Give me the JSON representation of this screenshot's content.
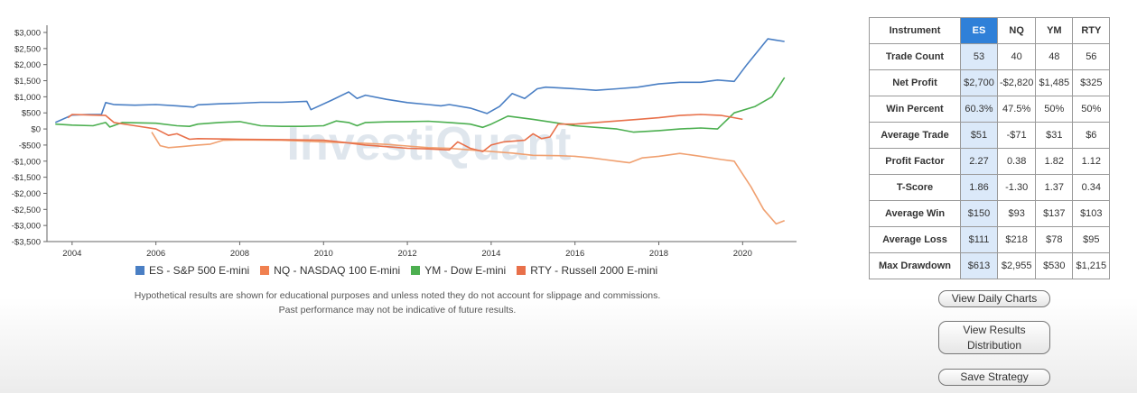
{
  "chart_data": {
    "type": "line",
    "title": "",
    "xlabel": "",
    "ylabel": "",
    "xlim": [
      2003.4,
      2021.2
    ],
    "ylim": [
      -3500,
      3000
    ],
    "y_ticks": [
      3000,
      2500,
      2000,
      1500,
      1000,
      500,
      0,
      -500,
      -1000,
      -1500,
      -2000,
      -2500,
      -3000,
      -3500
    ],
    "y_tick_labels": [
      "$3,000",
      "$2,500",
      "$2,000",
      "$1,500",
      "$1,000",
      "$500",
      "$0",
      "-$500",
      "-$1,000",
      "-$1,500",
      "-$2,000",
      "-$2,500",
      "-$3,000",
      "-$3,500"
    ],
    "x_ticks": [
      2004,
      2006,
      2008,
      2010,
      2012,
      2014,
      2016,
      2018,
      2020
    ],
    "x_tick_labels": [
      "2004",
      "2006",
      "2008",
      "2010",
      "2012",
      "2014",
      "2016",
      "2018",
      "2020"
    ],
    "watermark": "InvestiQuant",
    "series": [
      {
        "name": "ES - S&P 500 E-mini",
        "color": "#4a7fc4",
        "points": [
          [
            2003.6,
            200
          ],
          [
            2004.0,
            430
          ],
          [
            2004.4,
            450
          ],
          [
            2004.7,
            450
          ],
          [
            2004.8,
            820
          ],
          [
            2005.0,
            760
          ],
          [
            2005.5,
            740
          ],
          [
            2006.0,
            760
          ],
          [
            2006.5,
            720
          ],
          [
            2006.9,
            680
          ],
          [
            2007.0,
            750
          ],
          [
            2007.5,
            780
          ],
          [
            2008.0,
            800
          ],
          [
            2008.5,
            830
          ],
          [
            2009.0,
            830
          ],
          [
            2009.6,
            860
          ],
          [
            2009.7,
            600
          ],
          [
            2010.2,
            900
          ],
          [
            2010.6,
            1150
          ],
          [
            2010.8,
            950
          ],
          [
            2011.0,
            1050
          ],
          [
            2011.5,
            920
          ],
          [
            2012.0,
            820
          ],
          [
            2012.5,
            760
          ],
          [
            2012.8,
            720
          ],
          [
            2013.0,
            760
          ],
          [
            2013.5,
            650
          ],
          [
            2013.9,
            480
          ],
          [
            2014.2,
            700
          ],
          [
            2014.5,
            1100
          ],
          [
            2014.8,
            950
          ],
          [
            2015.1,
            1250
          ],
          [
            2015.3,
            1300
          ],
          [
            2015.6,
            1280
          ],
          [
            2016.0,
            1250
          ],
          [
            2016.5,
            1200
          ],
          [
            2017.0,
            1250
          ],
          [
            2017.5,
            1300
          ],
          [
            2018.0,
            1400
          ],
          [
            2018.5,
            1450
          ],
          [
            2019.0,
            1450
          ],
          [
            2019.4,
            1520
          ],
          [
            2019.8,
            1480
          ],
          [
            2020.1,
            2000
          ],
          [
            2020.6,
            2800
          ],
          [
            2020.8,
            2760
          ],
          [
            2021.0,
            2720
          ]
        ]
      },
      {
        "name": "NQ - NASDAQ 100 E-mini",
        "color": "#f0a070",
        "points": [
          [
            2005.9,
            -100
          ],
          [
            2006.1,
            -520
          ],
          [
            2006.3,
            -580
          ],
          [
            2006.6,
            -550
          ],
          [
            2007.0,
            -500
          ],
          [
            2007.3,
            -470
          ],
          [
            2007.6,
            -350
          ],
          [
            2008.0,
            -340
          ],
          [
            2009.0,
            -350
          ],
          [
            2010.0,
            -400
          ],
          [
            2011.0,
            -450
          ],
          [
            2011.5,
            -480
          ],
          [
            2012.0,
            -530
          ],
          [
            2012.5,
            -580
          ],
          [
            2013.0,
            -600
          ],
          [
            2013.5,
            -650
          ],
          [
            2014.0,
            -700
          ],
          [
            2014.5,
            -750
          ],
          [
            2015.0,
            -820
          ],
          [
            2015.6,
            -830
          ],
          [
            2016.0,
            -850
          ],
          [
            2016.4,
            -900
          ],
          [
            2016.7,
            -950
          ],
          [
            2017.0,
            -1000
          ],
          [
            2017.3,
            -1050
          ],
          [
            2017.6,
            -900
          ],
          [
            2018.0,
            -850
          ],
          [
            2018.5,
            -760
          ],
          [
            2019.0,
            -850
          ],
          [
            2019.5,
            -950
          ],
          [
            2019.8,
            -1000
          ],
          [
            2020.2,
            -1800
          ],
          [
            2020.5,
            -2500
          ],
          [
            2020.8,
            -2950
          ],
          [
            2021.0,
            -2850
          ]
        ]
      },
      {
        "name": "YM - Dow E-mini",
        "color": "#4caf50",
        "points": [
          [
            2003.6,
            150
          ],
          [
            2004.0,
            120
          ],
          [
            2004.5,
            100
          ],
          [
            2004.8,
            200
          ],
          [
            2004.9,
            60
          ],
          [
            2005.2,
            200
          ],
          [
            2006.0,
            180
          ],
          [
            2006.5,
            100
          ],
          [
            2006.8,
            80
          ],
          [
            2007.0,
            150
          ],
          [
            2007.5,
            200
          ],
          [
            2008.0,
            230
          ],
          [
            2008.5,
            100
          ],
          [
            2009.0,
            80
          ],
          [
            2009.5,
            80
          ],
          [
            2010.0,
            100
          ],
          [
            2010.3,
            250
          ],
          [
            2010.6,
            200
          ],
          [
            2010.8,
            100
          ],
          [
            2011.0,
            200
          ],
          [
            2011.5,
            220
          ],
          [
            2012.0,
            230
          ],
          [
            2012.5,
            240
          ],
          [
            2013.0,
            200
          ],
          [
            2013.5,
            150
          ],
          [
            2013.8,
            50
          ],
          [
            2014.0,
            150
          ],
          [
            2014.4,
            400
          ],
          [
            2015.0,
            300
          ],
          [
            2015.5,
            200
          ],
          [
            2016.0,
            100
          ],
          [
            2016.5,
            50
          ],
          [
            2017.0,
            0
          ],
          [
            2017.4,
            -100
          ],
          [
            2018.0,
            -50
          ],
          [
            2018.5,
            0
          ],
          [
            2019.0,
            30
          ],
          [
            2019.4,
            0
          ],
          [
            2019.8,
            500
          ],
          [
            2020.3,
            700
          ],
          [
            2020.7,
            1000
          ],
          [
            2021.0,
            1600
          ]
        ]
      },
      {
        "name": "RTY - Russell 2000 E-mini",
        "color": "#e8704a",
        "points": [
          [
            2003.9,
            350
          ],
          [
            2004.0,
            450
          ],
          [
            2004.5,
            430
          ],
          [
            2004.8,
            420
          ],
          [
            2005.0,
            200
          ],
          [
            2005.5,
            100
          ],
          [
            2006.0,
            0
          ],
          [
            2006.3,
            -200
          ],
          [
            2006.5,
            -150
          ],
          [
            2006.8,
            -320
          ],
          [
            2007.0,
            -300
          ],
          [
            2008.0,
            -320
          ],
          [
            2009.0,
            -330
          ],
          [
            2010.0,
            -350
          ],
          [
            2010.5,
            -420
          ],
          [
            2011.0,
            -500
          ],
          [
            2011.5,
            -550
          ],
          [
            2012.0,
            -600
          ],
          [
            2012.5,
            -620
          ],
          [
            2013.0,
            -650
          ],
          [
            2013.2,
            -400
          ],
          [
            2013.5,
            -600
          ],
          [
            2013.8,
            -700
          ],
          [
            2014.0,
            -500
          ],
          [
            2014.3,
            -400
          ],
          [
            2014.8,
            -350
          ],
          [
            2015.0,
            -150
          ],
          [
            2015.2,
            -300
          ],
          [
            2015.4,
            -250
          ],
          [
            2015.6,
            150
          ],
          [
            2016.0,
            150
          ],
          [
            2016.5,
            200
          ],
          [
            2017.0,
            250
          ],
          [
            2017.5,
            300
          ],
          [
            2018.0,
            350
          ],
          [
            2018.5,
            420
          ],
          [
            2019.0,
            450
          ],
          [
            2019.5,
            420
          ],
          [
            2019.8,
            350
          ],
          [
            2020.0,
            300
          ]
        ]
      }
    ],
    "legend_position": "bottom"
  },
  "disclaimer": {
    "line1": "Hypothetical results are shown for educational purposes and unless noted they do not account for slippage and commissions.",
    "line2": "Past performance may not be indicative of future results."
  },
  "table": {
    "headers": [
      "Instrument",
      "ES",
      "NQ",
      "YM",
      "RTY"
    ],
    "rows": [
      {
        "label": "Trade Count",
        "values": [
          "53",
          "40",
          "48",
          "56"
        ]
      },
      {
        "label": "Net Profit",
        "values": [
          "$2,700",
          "-$2,820",
          "$1,485",
          "$325"
        ]
      },
      {
        "label": "Win Percent",
        "values": [
          "60.3%",
          "47.5%",
          "50%",
          "50%"
        ]
      },
      {
        "label": "Average Trade",
        "values": [
          "$51",
          "-$71",
          "$31",
          "$6"
        ]
      },
      {
        "label": "Profit Factor",
        "values": [
          "2.27",
          "0.38",
          "1.82",
          "1.12"
        ]
      },
      {
        "label": "T-Score",
        "values": [
          "1.86",
          "-1.30",
          "1.37",
          "0.34"
        ]
      },
      {
        "label": "Average Win",
        "values": [
          "$150",
          "$93",
          "$137",
          "$103"
        ]
      },
      {
        "label": "Average Loss",
        "values": [
          "$111",
          "$218",
          "$78",
          "$95"
        ]
      },
      {
        "label": "Max Drawdown",
        "values": [
          "$613",
          "$2,955",
          "$530",
          "$1,215"
        ]
      }
    ]
  },
  "buttons": {
    "daily": "View Daily Charts",
    "dist_line1": "View Results",
    "dist_line2": "Distribution",
    "save": "Save Strategy"
  }
}
